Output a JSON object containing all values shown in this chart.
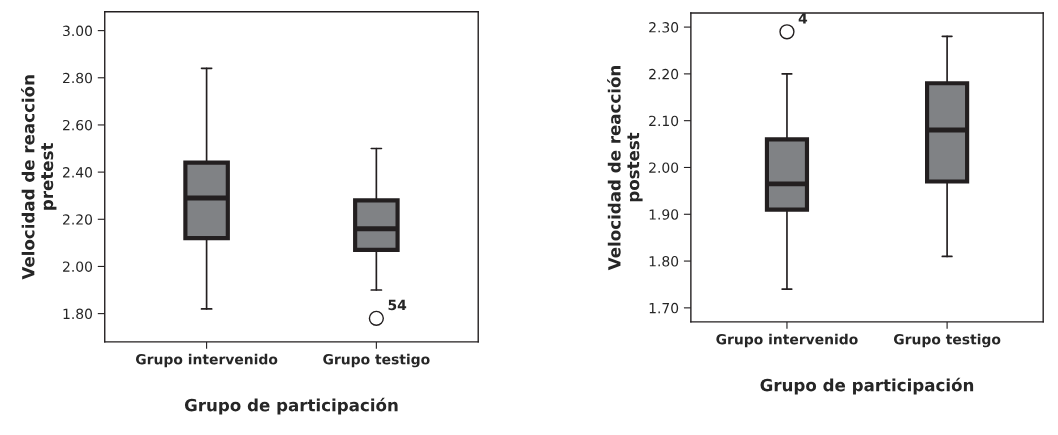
{
  "chart_data": [
    {
      "type": "box",
      "categories": [
        "Grupo intervenido",
        "Grupo testigo"
      ],
      "xlabel": "Grupo de participación",
      "ylabel": "Velocidad de reacción\npretest",
      "color": "#808285",
      "boxes": [
        {
          "low": 1.82,
          "q1": 2.12,
          "median": 2.29,
          "q3": 2.44,
          "high": 2.84
        },
        {
          "low": 1.9,
          "q1": 2.07,
          "median": 2.16,
          "q3": 2.28,
          "high": 2.5,
          "outliers": [
            1.78
          ]
        }
      ],
      "annotations": [
        "54"
      ],
      "ylim": [
        1.68,
        3.08
      ],
      "yticks": [
        {
          "value": 1.8,
          "label": "1.80"
        },
        {
          "value": 2.0,
          "label": "2.00"
        },
        {
          "value": 2.2,
          "label": "2.20"
        },
        {
          "value": 2.4,
          "label": "2.40"
        },
        {
          "value": 2.6,
          "label": "2.60"
        },
        {
          "value": 2.8,
          "label": "2.80"
        },
        {
          "value": 3.0,
          "label": "3.00"
        }
      ],
      "grid": false
    },
    {
      "type": "box",
      "categories": [
        "Grupo intervenido",
        "Grupo testigo"
      ],
      "xlabel": "Grupo de participación",
      "ylabel": "Velocidad de reacción\npostest",
      "color": "#808285",
      "boxes": [
        {
          "low": 1.74,
          "q1": 1.91,
          "median": 1.965,
          "q3": 2.06,
          "high": 2.2,
          "outliers": [
            2.29
          ]
        },
        {
          "low": 1.81,
          "q1": 1.97,
          "median": 2.08,
          "q3": 2.18,
          "high": 2.28
        }
      ],
      "annotations": [
        "4"
      ],
      "ylim": [
        1.67,
        2.33
      ],
      "yticks": [
        {
          "value": 1.7,
          "label": "1.70"
        },
        {
          "value": 1.8,
          "label": "1.80"
        },
        {
          "value": 1.9,
          "label": "1.90"
        },
        {
          "value": 2.0,
          "label": "2.00"
        },
        {
          "value": 2.1,
          "label": "2.10"
        },
        {
          "value": 2.2,
          "label": "2.20"
        },
        {
          "value": 2.3,
          "label": "2.30"
        }
      ],
      "grid": false
    }
  ]
}
